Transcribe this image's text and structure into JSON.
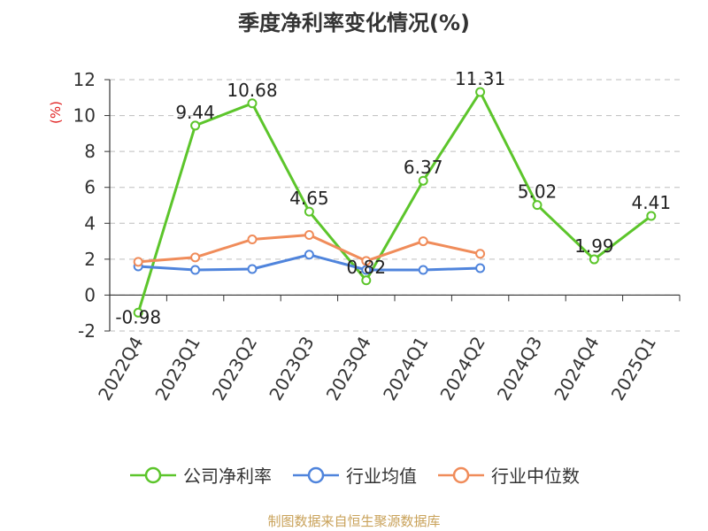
{
  "chart_data": {
    "type": "line",
    "title": "季度净利率变化情况(%)",
    "ylabel": "(%)",
    "ylim": [
      -2,
      12
    ],
    "yticks": [
      -2,
      0,
      2,
      4,
      6,
      8,
      10,
      12
    ],
    "grid": true,
    "legend_position": "bottom",
    "categories": [
      "2022Q4",
      "2023Q1",
      "2023Q2",
      "2023Q3",
      "2023Q4",
      "2024Q1",
      "2024Q2",
      "2024Q3",
      "2024Q4",
      "2025Q1"
    ],
    "series": [
      {
        "name": "公司净利率",
        "color": "#5cc52b",
        "values": [
          -0.98,
          9.44,
          10.68,
          4.65,
          0.82,
          6.37,
          11.31,
          5.02,
          1.99,
          4.41
        ],
        "labels": [
          "-0.98",
          "9.44",
          "10.68",
          "4.65",
          "0.82",
          "6.37",
          "11.31",
          "5.02",
          "1.99",
          "4.41"
        ]
      },
      {
        "name": "行业均值",
        "color": "#4f84dc",
        "values": [
          1.6,
          1.4,
          1.45,
          2.25,
          1.4,
          1.4,
          1.5,
          null,
          null,
          null
        ]
      },
      {
        "name": "行业中位数",
        "color": "#f08c5a",
        "values": [
          1.85,
          2.1,
          3.1,
          3.35,
          1.9,
          3.0,
          2.3,
          null,
          null,
          null
        ]
      }
    ]
  },
  "source_note": "制图数据来自恒生聚源数据库"
}
